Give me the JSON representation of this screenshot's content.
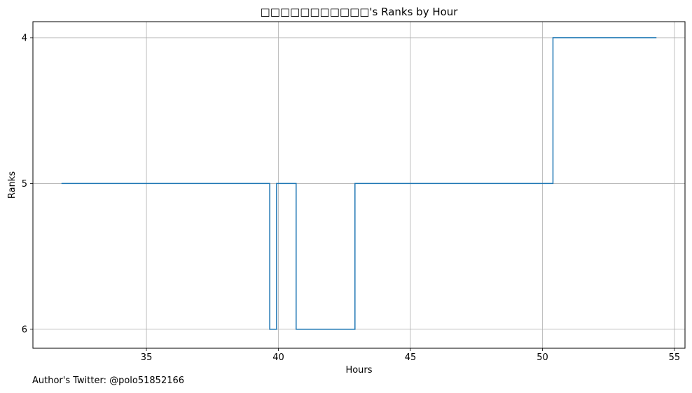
{
  "chart_data": {
    "type": "line",
    "drawstyle": "steps-post",
    "title": "□□□□□□□□□□□'s Ranks by Hour",
    "xlabel": "Hours",
    "ylabel": "Ranks",
    "xlim": [
      30.7,
      55.4
    ],
    "ylim": [
      6.13,
      3.89
    ],
    "y_inverted": true,
    "grid": true,
    "xticks": [
      35,
      40,
      45,
      50,
      55
    ],
    "yticks": [
      4,
      5,
      6
    ],
    "line_color": "#1f77b4",
    "series": [
      {
        "x": [
          31.8,
          39.67,
          39.93,
          40.67,
          42.9,
          50.4,
          54.3
        ],
        "y": [
          5,
          6,
          5,
          6,
          5,
          4,
          4
        ]
      }
    ]
  },
  "footer": {
    "text": "Author's Twitter: @polo51852166"
  }
}
